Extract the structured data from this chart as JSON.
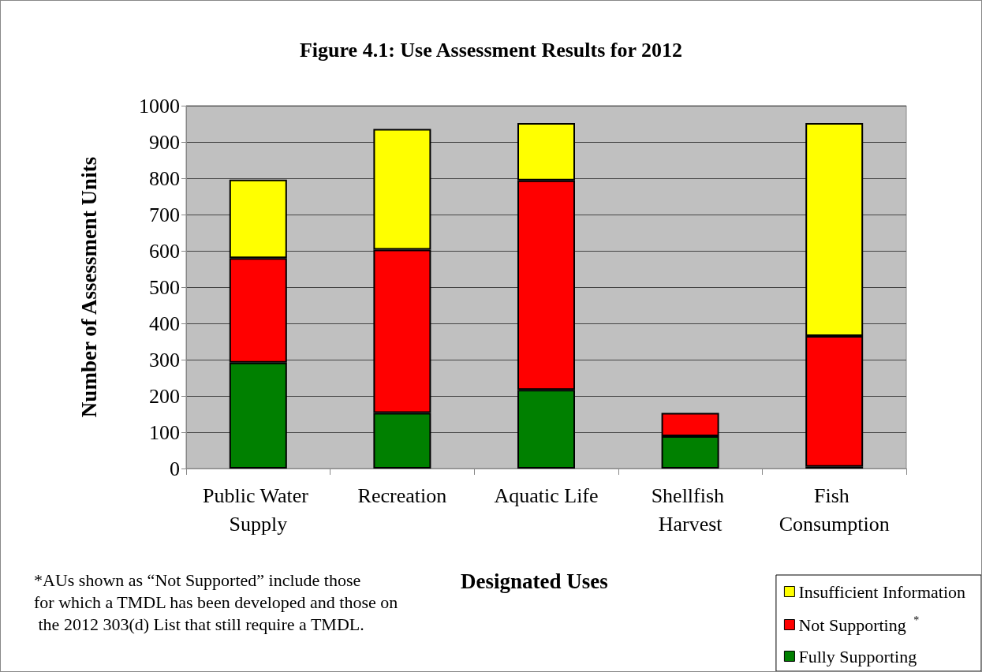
{
  "chart_data": {
    "type": "bar",
    "title": "Figure 4.1: Use Assessment Results for 2012",
    "categories": [
      "Public Water Supply",
      "Recreation",
      "Aquatic Life",
      "Shellfish Harvest",
      "Fish Consumption"
    ],
    "series": [
      {
        "name": "Fully Supporting",
        "color": "#008000",
        "values": [
          292,
          153,
          217,
          89,
          5
        ]
      },
      {
        "name": "Not Supporting $^{*}$",
        "color": "#ff0000",
        "values": [
          288,
          450,
          577,
          64,
          360
        ]
      },
      {
        "name": "Insufficient Information",
        "color": "#ffff00",
        "values": [
          216,
          333,
          158,
          null,
          587
        ]
      }
    ],
    "stacked": true,
    "ylim": [
      0,
      1000
    ],
    "yticks": [
      0,
      100,
      200,
      300,
      400,
      500,
      600,
      700,
      800,
      900,
      1000
    ],
    "xlabel": "Designated Uses",
    "ylabel": "Number of Assessment Units",
    "grid": "y",
    "legend": "bottom right",
    "annotations": [
      "*AUs shown as “Not Supported” include those for which a TMDL has been developed and those on the 2012 303(d) List that still require a TMDL."
    ]
  }
}
